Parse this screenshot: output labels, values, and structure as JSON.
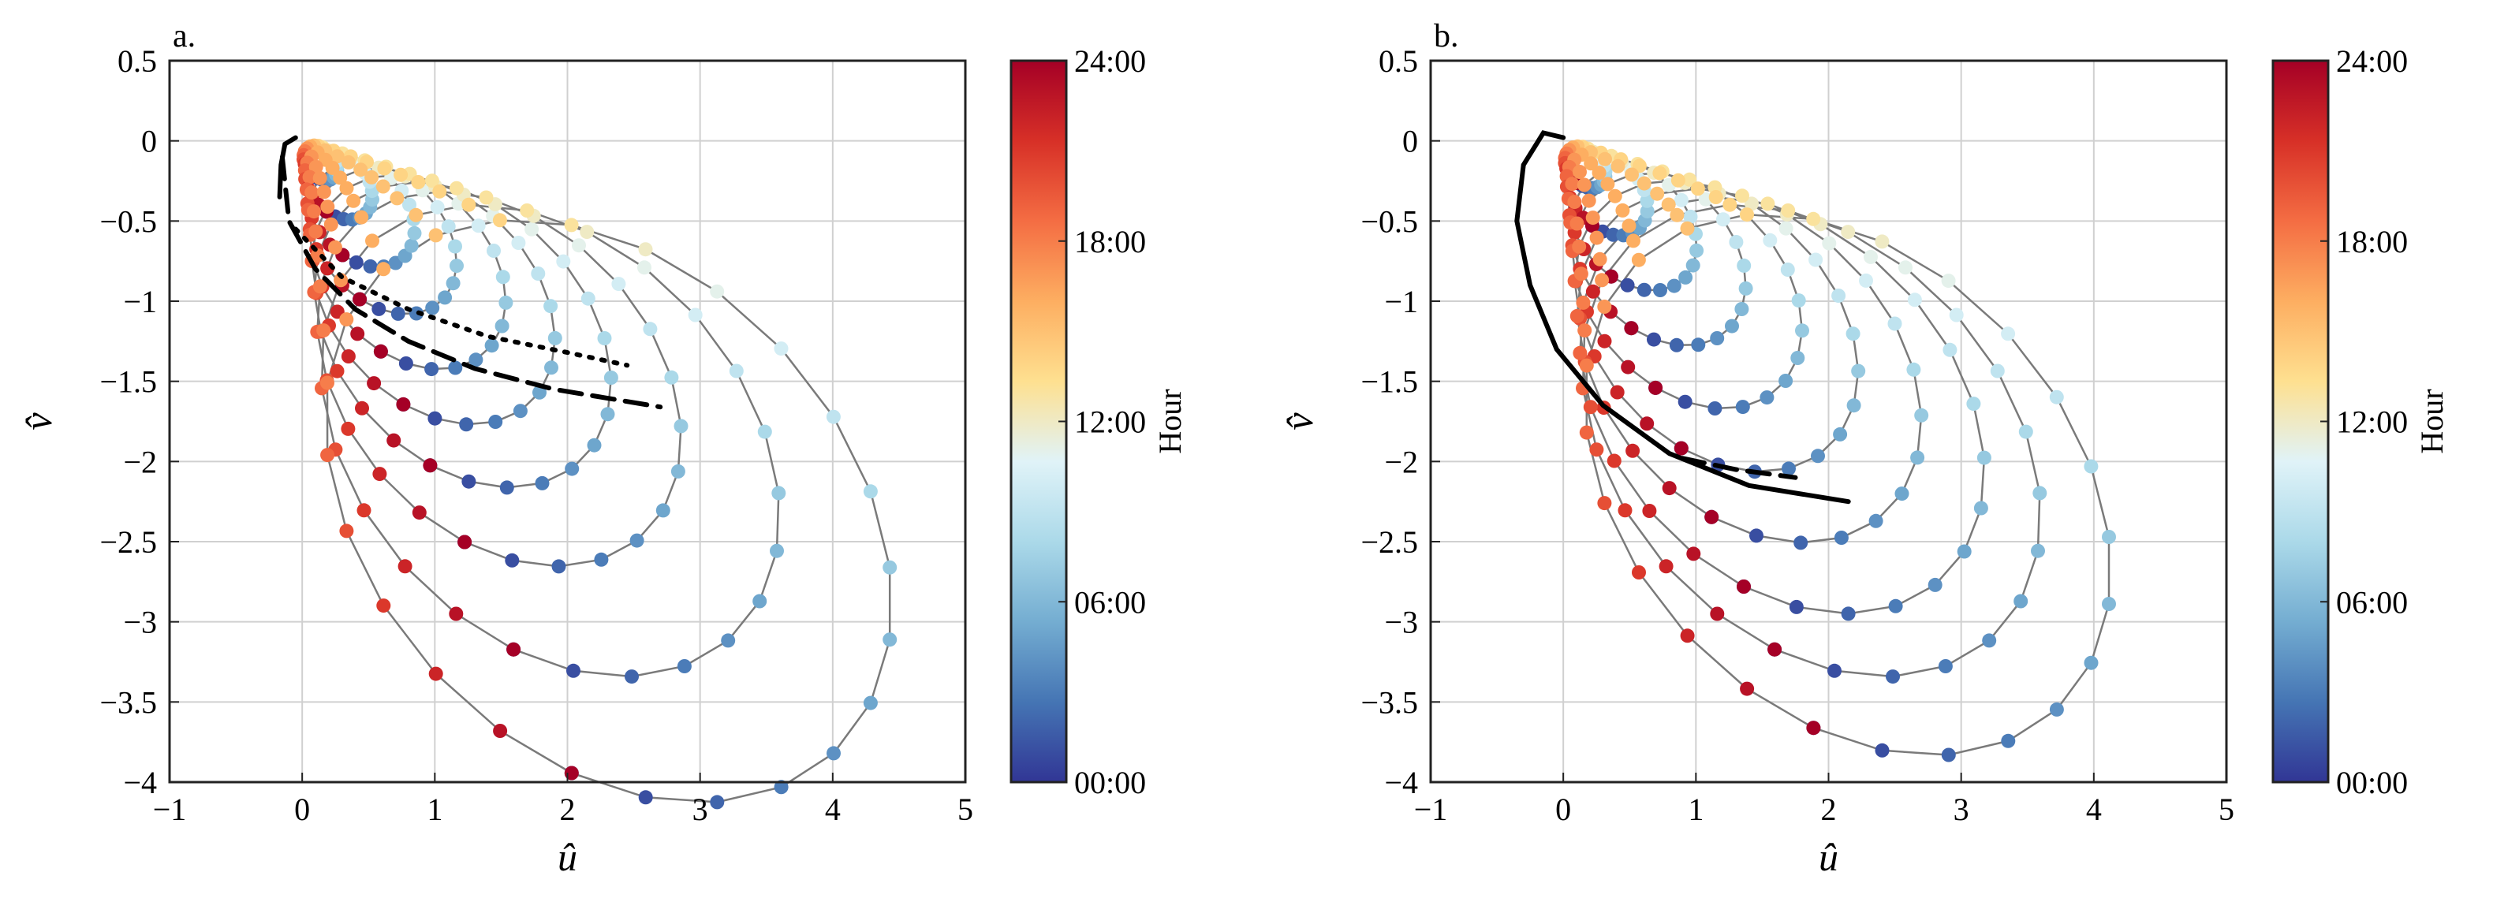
{
  "figure": {
    "background": "#ffffff"
  },
  "colormap": {
    "name": "RdYlBu_r",
    "stops": [
      "#313695",
      "#4575b4",
      "#74add1",
      "#abd9e9",
      "#e0f3f8",
      "#fee090",
      "#fdae61",
      "#f46d43",
      "#d73027",
      "#a50026"
    ]
  },
  "colorbar": {
    "label": "Hour",
    "ticks": [
      "00:00",
      "06:00",
      "12:00",
      "18:00",
      "24:00"
    ]
  },
  "chart_data": [
    {
      "type": "scatter",
      "panel_label": "a.",
      "title": "",
      "xlabel": "û",
      "ylabel": "v̂",
      "xlim": [
        -1,
        5
      ],
      "ylim": [
        -4,
        0.5
      ],
      "xticks": [
        -1,
        0,
        1,
        2,
        3,
        4,
        5
      ],
      "xtick_labels": [
        "−1",
        "0",
        "1",
        "2",
        "3",
        "4",
        "5"
      ],
      "yticks": [
        0.5,
        0,
        -0.5,
        -1,
        -1.5,
        -2,
        -2.5,
        -3,
        -3.5,
        -4
      ],
      "ytick_labels": [
        "0.5",
        "0",
        "−0.5",
        "−1",
        "−1.5",
        "−2",
        "−2.5",
        "−3",
        "−3.5",
        "−4"
      ],
      "grid": true,
      "color_by": "hour",
      "hodographs": [
        {
          "scale": 0.25,
          "theta_offset": 0.0
        },
        {
          "scale": 0.5,
          "theta_offset": 0.15
        },
        {
          "scale": 0.8,
          "theta_offset": 0.3
        },
        {
          "scale": 1.1,
          "theta_offset": 0.45
        },
        {
          "scale": 1.45,
          "theta_offset": 0.6
        },
        {
          "scale": 1.8,
          "theta_offset": 0.75
        },
        {
          "scale": 2.2,
          "theta_offset": 0.9
        },
        {
          "scale": 2.7,
          "theta_offset": 1.05
        },
        {
          "scale": 3.4,
          "theta_offset": 1.2
        },
        {
          "scale": 4.2,
          "theta_offset": 1.35
        }
      ],
      "fit_lines": [
        {
          "style": "dashed",
          "points": [
            [
              -0.15,
              -0.1
            ],
            [
              -0.1,
              -0.5
            ],
            [
              0.1,
              -0.8
            ],
            [
              0.4,
              -1.05
            ],
            [
              0.8,
              -1.25
            ],
            [
              1.3,
              -1.42
            ],
            [
              1.9,
              -1.55
            ],
            [
              2.7,
              -1.66
            ]
          ]
        },
        {
          "style": "dotted",
          "points": [
            [
              -0.05,
              -0.55
            ],
            [
              0.3,
              -0.85
            ],
            [
              0.8,
              -1.05
            ],
            [
              1.4,
              -1.22
            ],
            [
              2.0,
              -1.32
            ],
            [
              2.45,
              -1.4
            ]
          ]
        },
        {
          "style": "solid",
          "points": [
            [
              -0.17,
              -0.35
            ],
            [
              -0.16,
              -0.15
            ],
            [
              -0.13,
              -0.02
            ],
            [
              -0.05,
              0.02
            ]
          ]
        }
      ]
    },
    {
      "type": "scatter",
      "panel_label": "b.",
      "title": "",
      "xlabel": "û",
      "ylabel": "v̂",
      "xlim": [
        -1,
        5
      ],
      "ylim": [
        -4,
        0.5
      ],
      "xticks": [
        -1,
        0,
        1,
        2,
        3,
        4,
        5
      ],
      "xtick_labels": [
        "−1",
        "0",
        "1",
        "2",
        "3",
        "4",
        "5"
      ],
      "yticks": [
        0.5,
        0,
        -0.5,
        -1,
        -1.5,
        -2,
        -2.5,
        -3,
        -3.5,
        -4
      ],
      "ytick_labels": [
        "0.5",
        "0",
        "−0.5",
        "−1",
        "−1.5",
        "−2",
        "−2.5",
        "−3",
        "−3.5",
        "−4"
      ],
      "grid": true,
      "color_by": "hour",
      "hodographs": [
        {
          "scale": 0.3,
          "theta_offset": 0.0
        },
        {
          "scale": 0.6,
          "theta_offset": 0.15
        },
        {
          "scale": 0.95,
          "theta_offset": 0.3
        },
        {
          "scale": 1.3,
          "theta_offset": 0.45
        },
        {
          "scale": 1.7,
          "theta_offset": 0.6
        },
        {
          "scale": 2.1,
          "theta_offset": 0.75
        },
        {
          "scale": 2.55,
          "theta_offset": 0.9
        },
        {
          "scale": 3.0,
          "theta_offset": 1.05
        },
        {
          "scale": 3.4,
          "theta_offset": 1.2
        },
        {
          "scale": 3.9,
          "theta_offset": 1.35
        }
      ],
      "fit_lines": [
        {
          "style": "solid",
          "points": [
            [
              0.0,
              0.02
            ],
            [
              -0.15,
              0.05
            ],
            [
              -0.3,
              -0.15
            ],
            [
              -0.35,
              -0.5
            ],
            [
              -0.25,
              -0.9
            ],
            [
              -0.05,
              -1.3
            ],
            [
              0.3,
              -1.65
            ],
            [
              0.8,
              -1.95
            ],
            [
              1.4,
              -2.15
            ],
            [
              2.15,
              -2.25
            ]
          ]
        },
        {
          "style": "dashed",
          "points": [
            [
              0.9,
              -1.98
            ],
            [
              1.3,
              -2.05
            ],
            [
              1.75,
              -2.1
            ]
          ]
        }
      ]
    }
  ]
}
